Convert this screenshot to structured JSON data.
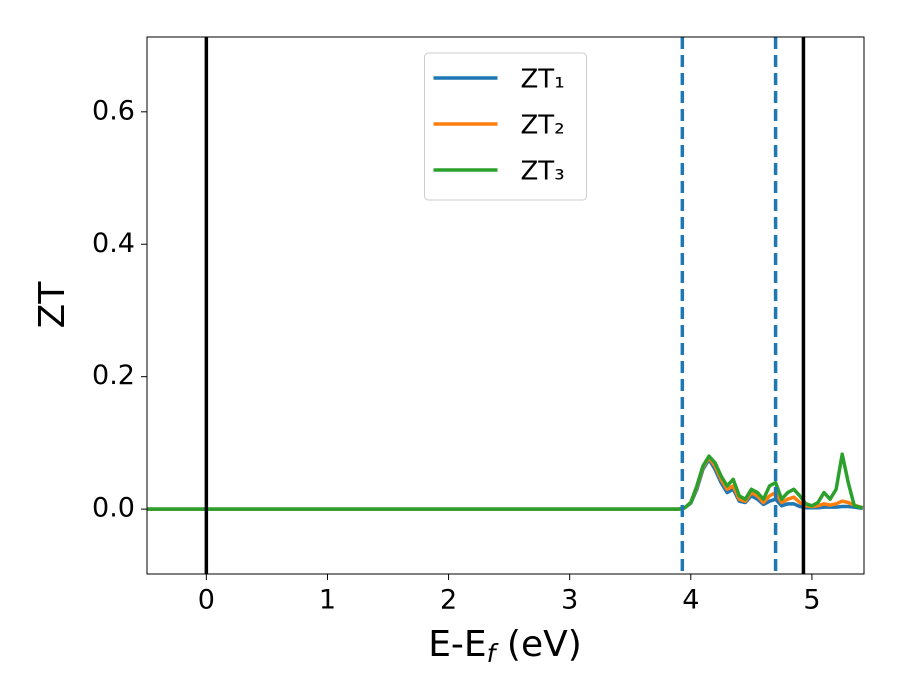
{
  "chart_data": {
    "type": "line",
    "x_label": {
      "main": "E-E",
      "sub": "f",
      "rest": " (eV)"
    },
    "y_label": "ZT",
    "xlim": [
      -0.49,
      5.43
    ],
    "ylim": [
      -0.098,
      0.713
    ],
    "xticks": [
      0,
      1,
      2,
      3,
      4,
      5
    ],
    "yticks": [
      {
        "value": 0,
        "label": "0.0"
      },
      0.2,
      0.4,
      0.6
    ],
    "grid": false,
    "legend": "upper center",
    "x": [
      -0.49,
      3.9,
      3.95,
      4.0,
      4.05,
      4.1,
      4.15,
      4.2,
      4.25,
      4.3,
      4.35,
      4.4,
      4.45,
      4.5,
      4.55,
      4.6,
      4.65,
      4.7,
      4.75,
      4.8,
      4.85,
      4.9,
      4.95,
      5.0,
      5.05,
      5.1,
      5.15,
      5.2,
      5.25,
      5.3,
      5.35,
      5.42
    ],
    "series": [
      {
        "name": "ZT₁",
        "color": "#1f77b4",
        "values": [
          0,
          0,
          0.002,
          0.009,
          0.03,
          0.06,
          0.075,
          0.06,
          0.04,
          0.025,
          0.03,
          0.012,
          0.01,
          0.02,
          0.015,
          0.007,
          0.012,
          0.015,
          0.005,
          0.008,
          0.008,
          0.004,
          0.002,
          0.002,
          0.002,
          0.003,
          0.003,
          0.003,
          0.004,
          0.004,
          0.003,
          0.001
        ]
      },
      {
        "name": "ZT₂",
        "color": "#ff7f0e",
        "values": [
          0,
          0,
          0.002,
          0.01,
          0.033,
          0.063,
          0.078,
          0.065,
          0.045,
          0.03,
          0.035,
          0.015,
          0.012,
          0.025,
          0.02,
          0.01,
          0.02,
          0.025,
          0.01,
          0.015,
          0.018,
          0.01,
          0.005,
          0.004,
          0.005,
          0.008,
          0.006,
          0.008,
          0.012,
          0.01,
          0.006,
          0.002
        ]
      },
      {
        "name": "ZT₃",
        "color": "#2ca02c",
        "values": [
          0,
          0,
          0.002,
          0.01,
          0.035,
          0.065,
          0.08,
          0.07,
          0.05,
          0.035,
          0.045,
          0.02,
          0.015,
          0.03,
          0.025,
          0.015,
          0.035,
          0.04,
          0.015,
          0.025,
          0.03,
          0.02,
          0.008,
          0.005,
          0.01,
          0.025,
          0.015,
          0.03,
          0.083,
          0.04,
          0.005,
          0.002
        ]
      }
    ],
    "vlines": [
      {
        "x": 0,
        "color": "#000000",
        "style": "solid"
      },
      {
        "x": 4.93,
        "color": "#000000",
        "style": "solid"
      },
      {
        "x": 3.93,
        "color": "#1f77b4",
        "style": "dashed"
      },
      {
        "x": 4.7,
        "color": "#1f77b4",
        "style": "dashed"
      }
    ]
  }
}
